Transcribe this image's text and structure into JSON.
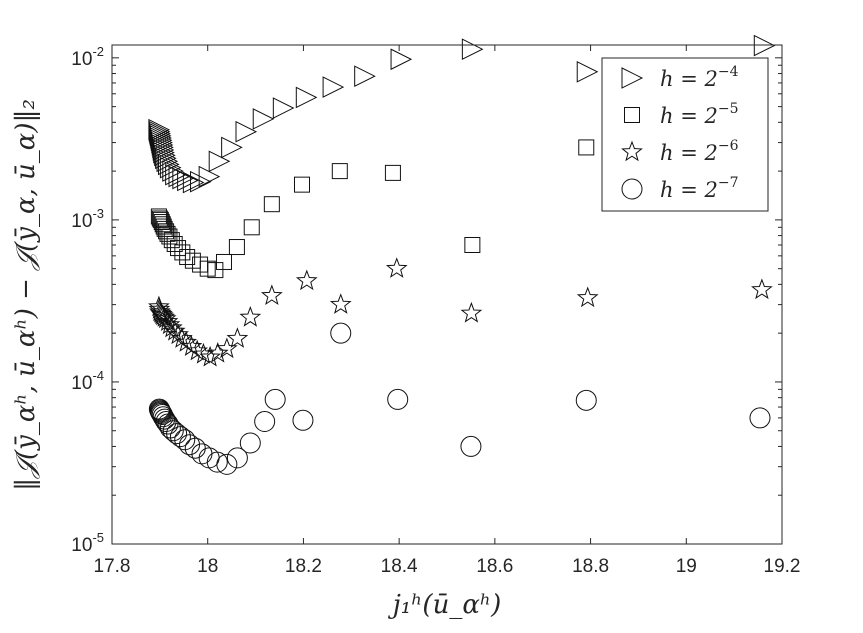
{
  "chart_data": {
    "type": "scatter",
    "title": "",
    "xlabel": "j₁ʰ(ū_αʰ)",
    "ylabel": "‖𝒥(ȳ_αʰ, ū_αʰ) − 𝒥(ȳ_α, ū_α)‖₂",
    "xlim": [
      17.8,
      19.2
    ],
    "ylim": [
      1e-05,
      0.012
    ],
    "yscale": "log",
    "grid": false,
    "legend_position": "top-right",
    "x_ticks": [
      "17.8",
      "18",
      "18.2",
      "18.4",
      "18.6",
      "18.8",
      "19",
      "19.2"
    ],
    "y_ticks": [
      {
        "base": "10",
        "exp": "-5",
        "value": 1e-05
      },
      {
        "base": "10",
        "exp": "-4",
        "value": 0.0001
      },
      {
        "base": "10",
        "exp": "-3",
        "value": 0.001
      },
      {
        "base": "10",
        "exp": "-2",
        "value": 0.01
      }
    ],
    "series": [
      {
        "name": "h = 2⁻⁴",
        "label_base": "h = 2",
        "label_exp": "−4",
        "marker": "triangle-right",
        "x": [
          17.898,
          17.899,
          17.9,
          17.901,
          17.902,
          17.903,
          17.904,
          17.905,
          17.906,
          17.907,
          17.908,
          17.91,
          17.912,
          17.915,
          17.918,
          17.922,
          17.927,
          17.933,
          17.94,
          17.948,
          17.958,
          17.97,
          17.985,
          18.003,
          18.024,
          18.05,
          18.08,
          18.116,
          18.158,
          18.206,
          18.262,
          18.328,
          18.404,
          18.553,
          18.793,
          19.163
        ],
        "y": [
          0.0036,
          0.0035,
          0.0034,
          0.0033,
          0.0032,
          0.0031,
          0.003,
          0.0029,
          0.0028,
          0.0027,
          0.0026,
          0.0025,
          0.0024,
          0.0023,
          0.0022,
          0.0021,
          0.002,
          0.0019,
          0.00185,
          0.0018,
          0.00175,
          0.0017,
          0.00172,
          0.00185,
          0.0023,
          0.0028,
          0.0035,
          0.0042,
          0.0049,
          0.0057,
          0.0066,
          0.0077,
          0.0098,
          0.0113,
          0.0082,
          0.0119
        ]
      },
      {
        "name": "h = 2⁻⁵",
        "label_base": "h = 2",
        "label_exp": "−5",
        "marker": "square",
        "x": [
          17.898,
          17.9,
          17.902,
          17.904,
          17.906,
          17.908,
          17.91,
          17.913,
          17.916,
          17.92,
          17.925,
          17.931,
          17.938,
          17.947,
          17.957,
          17.969,
          17.984,
          18.0,
          18.016,
          18.034,
          18.061,
          18.092,
          18.134,
          18.197,
          18.276,
          18.387,
          18.553,
          18.791
        ],
        "y": [
          0.00105,
          0.00102,
          0.001,
          0.00097,
          0.00094,
          0.00091,
          0.00088,
          0.00085,
          0.00082,
          0.00079,
          0.00075,
          0.00071,
          0.00067,
          0.00063,
          0.00059,
          0.00056,
          0.00053,
          0.0005,
          0.00049,
          0.00055,
          0.00068,
          0.0009,
          0.00125,
          0.00165,
          0.002,
          0.00195,
          0.0007,
          0.0028
        ]
      },
      {
        "name": "h = 2⁻⁶",
        "label_base": "h = 2",
        "label_exp": "−6",
        "marker": "star",
        "x": [
          17.898,
          17.899,
          17.9,
          17.902,
          17.904,
          17.906,
          17.909,
          17.912,
          17.916,
          17.92,
          17.925,
          17.931,
          17.938,
          17.946,
          17.955,
          17.966,
          17.978,
          17.991,
          18.005,
          18.021,
          18.04,
          18.062,
          18.089,
          18.134,
          18.207,
          18.278,
          18.395,
          18.551,
          18.794,
          19.158
        ],
        "y": [
          0.00029,
          0.00028,
          0.00027,
          0.000265,
          0.00026,
          0.000255,
          0.00025,
          0.000245,
          0.000235,
          0.000225,
          0.000215,
          0.000205,
          0.000195,
          0.000185,
          0.000175,
          0.000165,
          0.000155,
          0.000148,
          0.000142,
          0.00015,
          0.00016,
          0.000185,
          0.00025,
          0.00034,
          0.00042,
          0.0003,
          0.0005,
          0.000265,
          0.00033,
          0.00037
        ]
      },
      {
        "name": "h = 2⁻⁷",
        "label_base": "h = 2",
        "label_exp": "−7",
        "marker": "circle",
        "x": [
          17.899,
          17.9,
          17.901,
          17.902,
          17.903,
          17.905,
          17.907,
          17.91,
          17.913,
          17.917,
          17.922,
          17.928,
          17.935,
          17.943,
          17.952,
          17.962,
          17.974,
          17.988,
          18.003,
          18.02,
          18.04,
          18.062,
          18.089,
          18.119,
          18.141,
          18.199,
          18.278,
          18.397,
          18.55,
          18.791,
          19.154
        ],
        "y": [
          6.8e-05,
          6.7e-05,
          6.6e-05,
          6.5e-05,
          6.4e-05,
          6.3e-05,
          6.1e-05,
          5.9e-05,
          5.7e-05,
          5.5e-05,
          5.2e-05,
          5e-05,
          4.8e-05,
          4.6e-05,
          4.4e-05,
          4.1e-05,
          3.9e-05,
          3.6e-05,
          3.4e-05,
          3.2e-05,
          3.1e-05,
          3.4e-05,
          4.2e-05,
          5.7e-05,
          7.8e-05,
          5.8e-05,
          0.0002,
          7.8e-05,
          4e-05,
          7.7e-05,
          6e-05
        ]
      }
    ]
  }
}
